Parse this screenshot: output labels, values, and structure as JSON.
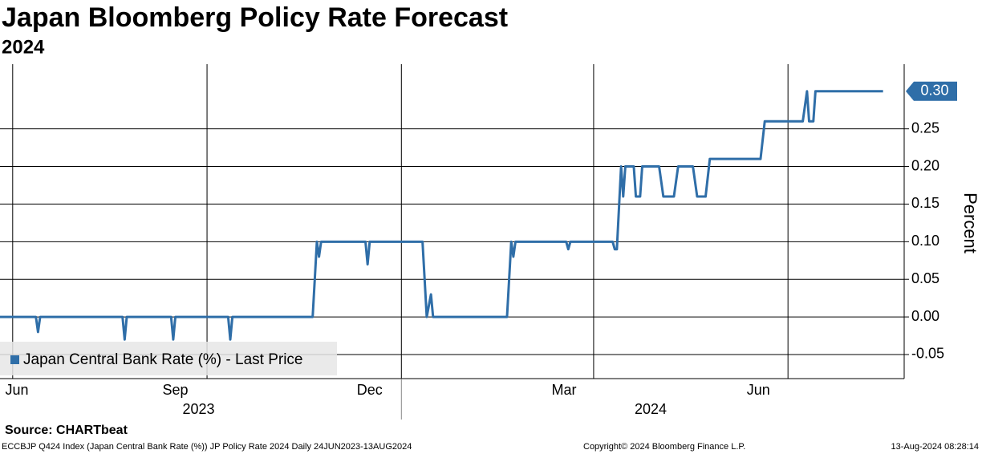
{
  "chart_data": {
    "type": "line",
    "title": "Japan Bloomberg Policy Rate Forecast",
    "subtitle": "2024",
    "y_label": "Percent",
    "xlim": [
      0,
      428
    ],
    "ylim": [
      -0.082,
      0.336
    ],
    "yticks": [
      -0.05,
      {
        "value": 0,
        "label": "0.00"
      },
      0.05,
      {
        "value": 0.1,
        "label": "0.10"
      },
      0.15,
      {
        "value": 0.2,
        "label": "0.20"
      },
      0.25
    ],
    "xticks": [
      {
        "value": 8,
        "label": "Jun"
      },
      {
        "value": 83,
        "label": "Sep"
      },
      {
        "value": 175,
        "label": "Dec"
      },
      {
        "value": 267,
        "label": "Mar"
      },
      {
        "value": 359,
        "label": "Jun"
      }
    ],
    "xgrid": [
      6,
      98,
      190,
      281,
      373
    ],
    "xgroups": [
      {
        "value": 94,
        "label": "2023"
      },
      {
        "value": 308,
        "label": "2024"
      }
    ],
    "xgroup_divider": 190,
    "grid": true,
    "legend": "lower left",
    "last_label": {
      "value": 0.3,
      "label": "0.30"
    },
    "series": [
      {
        "name": "Japan Central Bank Rate (%) - Last Price",
        "color": "#2f6ea8",
        "x": [
          0,
          17,
          18,
          19,
          58,
          59,
          60,
          81,
          82,
          83,
          108,
          109,
          110,
          148,
          150,
          151,
          152,
          173,
          174,
          175,
          200,
          202,
          204,
          205,
          240,
          242,
          243,
          244,
          268,
          269,
          270,
          290,
          291,
          292,
          294,
          295,
          296,
          300,
          301,
          303,
          304,
          312,
          314,
          319,
          321,
          328,
          330,
          334,
          336,
          360,
          362,
          380,
          382,
          383,
          385,
          386,
          418
        ],
        "values": [
          0,
          0,
          -0.02,
          0,
          0,
          -0.03,
          0,
          0,
          -0.03,
          0,
          0,
          -0.03,
          0,
          0,
          0.1,
          0.08,
          0.1,
          0.1,
          0.07,
          0.1,
          0.1,
          0,
          0.03,
          0,
          0,
          0.1,
          0.08,
          0.1,
          0.1,
          0.09,
          0.1,
          0.1,
          0.09,
          0.09,
          0.2,
          0.16,
          0.2,
          0.2,
          0.16,
          0.16,
          0.2,
          0.2,
          0.16,
          0.16,
          0.2,
          0.2,
          0.16,
          0.16,
          0.21,
          0.21,
          0.26,
          0.26,
          0.3,
          0.26,
          0.26,
          0.3,
          0.3
        ]
      }
    ]
  },
  "footer": {
    "source": "Source: CHARTbeat",
    "index": "ECCBJP Q424 Index (Japan Central Bank Rate (%)) JP Policy Rate 2024  Daily 24JUN2023-13AUG2024",
    "copyright": "Copyright© 2024 Bloomberg Finance L.P.",
    "timestamp": "13-Aug-2024 08:28:14"
  }
}
